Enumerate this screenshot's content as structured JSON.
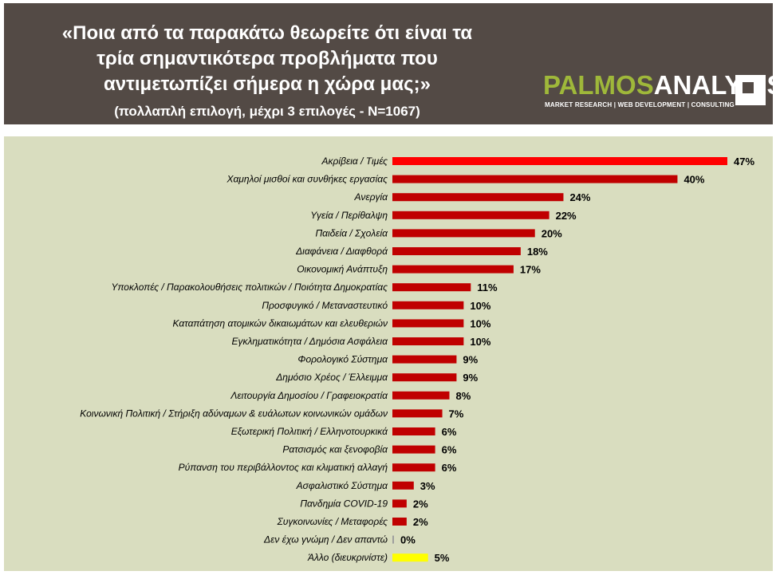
{
  "header": {
    "title_line1": "«Ποια από τα παρακάτω θεωρείτε ότι είναι τα",
    "title_line2": "τρία σημαντικότερα προβλήματα που",
    "title_line3": "αντιμετωπίζει σήμερα η χώρα μας;»",
    "subtitle": "(πολλαπλή επιλογή, μέχρι 3 επιλογές - Ν=1067)"
  },
  "logo": {
    "name_part1": "PALMOS",
    "name_part2": "ANALYSIS",
    "tagline": "MARKET RESEARCH | WEB DEVELOPMENT | CONSULTING"
  },
  "chart_data": {
    "type": "bar",
    "orientation": "horizontal",
    "value_suffix": "%",
    "xlim": [
      0,
      47
    ],
    "grid": false,
    "categories": [
      "Ακρίβεια / Τιμές",
      "Χαμηλοί μισθοί και συνθήκες εργασίας",
      "Ανεργία",
      "Υγεία / Περίθαλψη",
      "Παιδεία / Σχολεία",
      "Διαφάνεια / Διαφθορά",
      "Οικονομική Ανάπτυξη",
      "Υποκλοπές / Παρακολουθήσεις πολιτικών / Ποιότητα Δημοκρατίας",
      "Προσφυγικό / Μεταναστευτικό",
      "Καταπάτηση ατομικών δικαιωμάτων και ελευθεριών",
      "Εγκληματικότητα / Δημόσια Ασφάλεια",
      "Φορολογικό Σύστημα",
      "Δημόσιο Χρέος / Έλλειμμα",
      "Λειτουργία Δημοσίου / Γραφειοκρατία",
      "Κοινωνική Πολιτική / Στήριξη αδύναμων & ευάλωτων κοινωνικών ομάδων",
      "Εξωτερική Πολιτική / Ελληνοτουρκικά",
      "Ρατσισμός και ξενοφοβία",
      "Ρύπανση του περιβάλλοντος και κλιματική αλλαγή",
      "Ασφαλιστικό Σύστημα",
      "Πανδημία COVID-19",
      "Συγκοινωνίες / Μεταφορές",
      "Δεν έχω γνώμη / Δεν απαντώ",
      "Άλλο (διευκρινίστε)"
    ],
    "values": [
      47,
      40,
      24,
      22,
      20,
      18,
      17,
      11,
      10,
      10,
      10,
      9,
      9,
      8,
      7,
      6,
      6,
      6,
      3,
      2,
      2,
      0,
      5
    ],
    "colors": {
      "top": "#ff0000",
      "default": "#c00000",
      "other": "#ffff00",
      "zero": "#9e9e9e"
    }
  }
}
